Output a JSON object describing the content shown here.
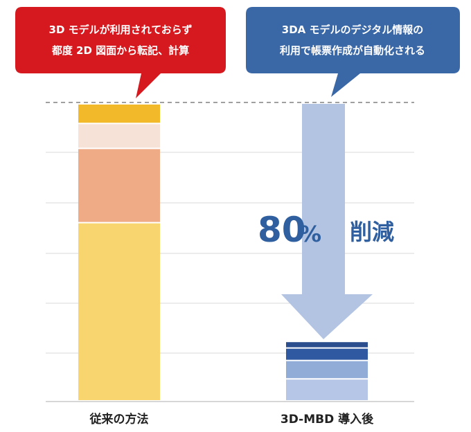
{
  "callouts": {
    "left": {
      "line1": "3D モデルが利用されておらず",
      "line2": "都度 2D 図面から転記、計算",
      "color": "#d5191e"
    },
    "right": {
      "line1": "3DA モデルのデジタル情報の",
      "line2": "利用で帳票作成が自動化される",
      "color": "#3a67a6"
    }
  },
  "reduction": {
    "number": "80",
    "percent_sign": "%",
    "word": "削減",
    "color": "#2f5f9e",
    "arrow_color": "#b3c4e3"
  },
  "colors": {
    "grid": "#d9d9d9",
    "axis": "#c8c8c8",
    "reference_line": "#808080"
  },
  "chart_data": {
    "type": "bar",
    "stacked": true,
    "categories": [
      "従来の方法",
      "3D-MBD 導入後"
    ],
    "ylim": [
      0,
      100
    ],
    "grid": true,
    "series": [
      {
        "values": [
          60,
          7.4
        ],
        "colors": [
          "#f8d56f",
          "#b5c6e6"
        ]
      },
      {
        "values": [
          25,
          6.2
        ],
        "colors": [
          "#eeab85",
          "#92acd8"
        ]
      },
      {
        "values": [
          8.4,
          4.2
        ],
        "colors": [
          "#f7e2d8",
          "#2f5aa1"
        ]
      },
      {
        "values": [
          6.6,
          2.2
        ],
        "colors": [
          "#f2b92a",
          "#2b4f8e"
        ]
      }
    ]
  }
}
